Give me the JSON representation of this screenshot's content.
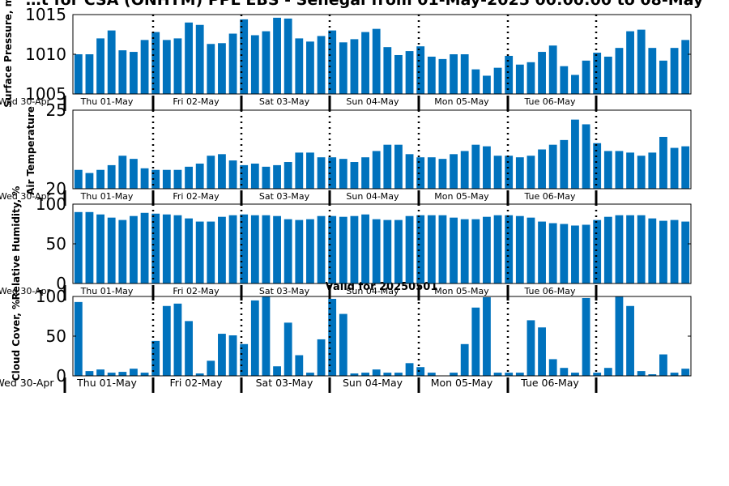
{
  "title": "…t for CSA (ONHTM) PPL EBS  - Senegal from 01-May-2025 00:00:00 to 08-May",
  "valid_label": "Valid for 20250501",
  "colors": {
    "bar": "#0072bd",
    "axis": "#000000",
    "background": "#ffffff"
  },
  "chart_data": [
    {
      "type": "bar",
      "ylabel": "Surface Pressure, mb",
      "ylim": [
        1005,
        1015
      ],
      "yticks": [
        1005,
        1010,
        1015
      ],
      "grid": false,
      "x_tick_labels": [
        "Wed 30-Apr",
        "Thu 01-May",
        "Fri 02-May",
        "Sat 03-May",
        "Sun 04-May",
        "Mon 05-May",
        "Tue 06-May"
      ],
      "values": [
        1010,
        1010,
        1012,
        1013,
        1010.5,
        1010.3,
        1011.8,
        1012.8,
        1011.8,
        1012,
        1014,
        1013.7,
        1011.3,
        1011.4,
        1012.6,
        1014.4,
        1012.4,
        1012.9,
        1014.6,
        1014.5,
        1012,
        1011.6,
        1012.3,
        1013,
        1011.5,
        1011.9,
        1012.8,
        1013.2,
        1010.9,
        1009.9,
        1010.4,
        1011,
        1009.7,
        1009.4,
        1010,
        1010,
        1008.1,
        1007.3,
        1008.3,
        1009.8,
        1008.7,
        1009,
        1010.3,
        1011.1,
        1008.5,
        1007.4,
        1009.2,
        1010.2,
        1009.7,
        1010.8,
        1012.9,
        1013.1,
        1010.8,
        1009.2,
        1010.8,
        1011.8
      ]
    },
    {
      "type": "bar",
      "ylabel": "Air Temperature",
      "ylim": [
        20,
        25
      ],
      "yticks": [
        20,
        25
      ],
      "grid": false,
      "x_tick_labels": [
        "Wed 30-Apr",
        "Thu 01-May",
        "Fri 02-May",
        "Sat 03-May",
        "Sun 04-May",
        "Mon 05-May",
        "Tue 06-May"
      ],
      "values": [
        21.2,
        21,
        21.2,
        21.5,
        22.1,
        21.9,
        21.3,
        21.2,
        21.2,
        21.2,
        21.4,
        21.6,
        22.1,
        22.2,
        21.8,
        21.5,
        21.6,
        21.4,
        21.5,
        21.7,
        22.3,
        22.3,
        22,
        22,
        21.9,
        21.7,
        22,
        22.4,
        22.8,
        22.8,
        22.2,
        22,
        22,
        21.9,
        22.2,
        22.4,
        22.8,
        22.7,
        22.1,
        22.1,
        22,
        22.1,
        22.5,
        22.8,
        23.1,
        24.4,
        24.1,
        22.9,
        22.4,
        22.4,
        22.3,
        22.1,
        22.3,
        23.3,
        22.6,
        22.7
      ]
    },
    {
      "type": "bar",
      "ylabel": "Relative Humidity, %",
      "ylim": [
        0,
        100
      ],
      "yticks": [
        0,
        50,
        100
      ],
      "grid": false,
      "x_tick_labels": [
        "Wed 30-Apr",
        "Thu 01-May",
        "Fri 02-May",
        "Sat 03-May",
        "Sun 04-May",
        "Mon 05-May",
        "Tue 06-May"
      ],
      "values": [
        90,
        90,
        87,
        83,
        80,
        85,
        89,
        88,
        87,
        86,
        82,
        78,
        78,
        84,
        86,
        87,
        86,
        86,
        85,
        81,
        80,
        81,
        85,
        85,
        84,
        85,
        87,
        81,
        80,
        80,
        85,
        86,
        86,
        86,
        83,
        81,
        81,
        84,
        86,
        86,
        85,
        83,
        78,
        76,
        75,
        73,
        74,
        80,
        84,
        86,
        86,
        86,
        82,
        79,
        80,
        78
      ]
    },
    {
      "type": "bar",
      "ylabel": "Cloud Cover, %",
      "ylim": [
        0,
        100
      ],
      "yticks": [
        0,
        50,
        100
      ],
      "grid": false,
      "x_tick_labels": [
        "Wed 30-Apr",
        "Thu 01-May",
        "Fri 02-May",
        "Sat 03-May",
        "Sun 04-May",
        "Mon 05-May",
        "Tue 06-May"
      ],
      "values": [
        93,
        6,
        8,
        4,
        5,
        9,
        4,
        44,
        88,
        91,
        69,
        3,
        19,
        53,
        51,
        40,
        95,
        100,
        12,
        67,
        26,
        4,
        46,
        97,
        78,
        3,
        4,
        8,
        4,
        4,
        16,
        11,
        4,
        0,
        4,
        40,
        86,
        99,
        4,
        4,
        4,
        70,
        61,
        21,
        10,
        4,
        98,
        4,
        10,
        100,
        88,
        6,
        2,
        27,
        4,
        9
      ]
    }
  ]
}
